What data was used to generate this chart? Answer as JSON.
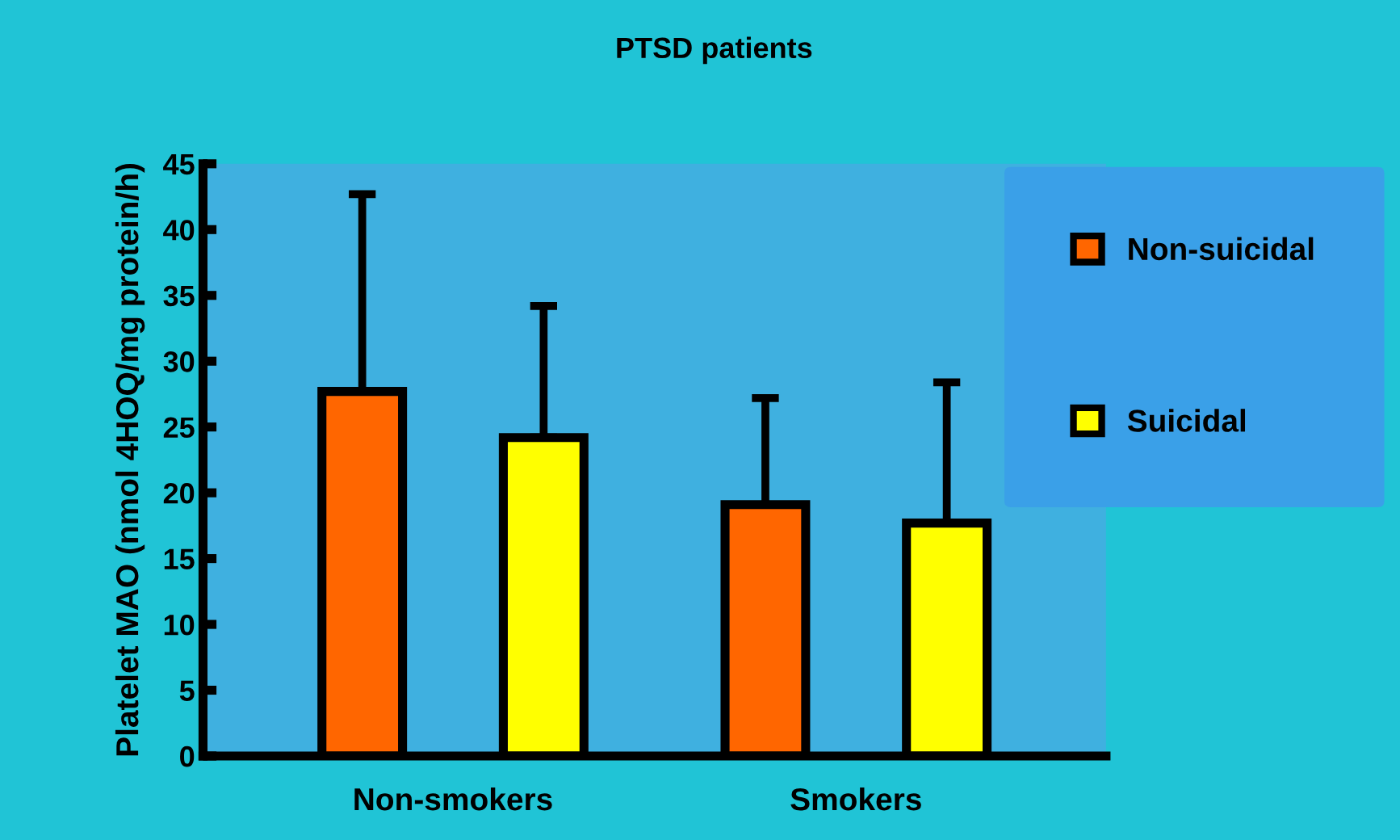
{
  "chart_data": {
    "type": "bar",
    "title": "PTSD patients",
    "ylabel": "Platelet MAO (nmol 4HOQ/mg protein/h)",
    "categories": [
      "Non-smokers",
      "Smokers"
    ],
    "series": [
      {
        "name": "Non-suicidal",
        "color": "#ff6600",
        "values": [
          27.7,
          19.1
        ],
        "errors": [
          15,
          8.1
        ]
      },
      {
        "name": "Suicidal",
        "color": "#ffff00",
        "values": [
          24.2,
          17.7
        ],
        "errors": [
          10,
          10.7
        ]
      }
    ],
    "ylim": [
      0,
      45
    ],
    "yticks": [
      0,
      5,
      10,
      15,
      20,
      25,
      30,
      35,
      40,
      45
    ],
    "grid": false,
    "legend": "top right"
  }
}
